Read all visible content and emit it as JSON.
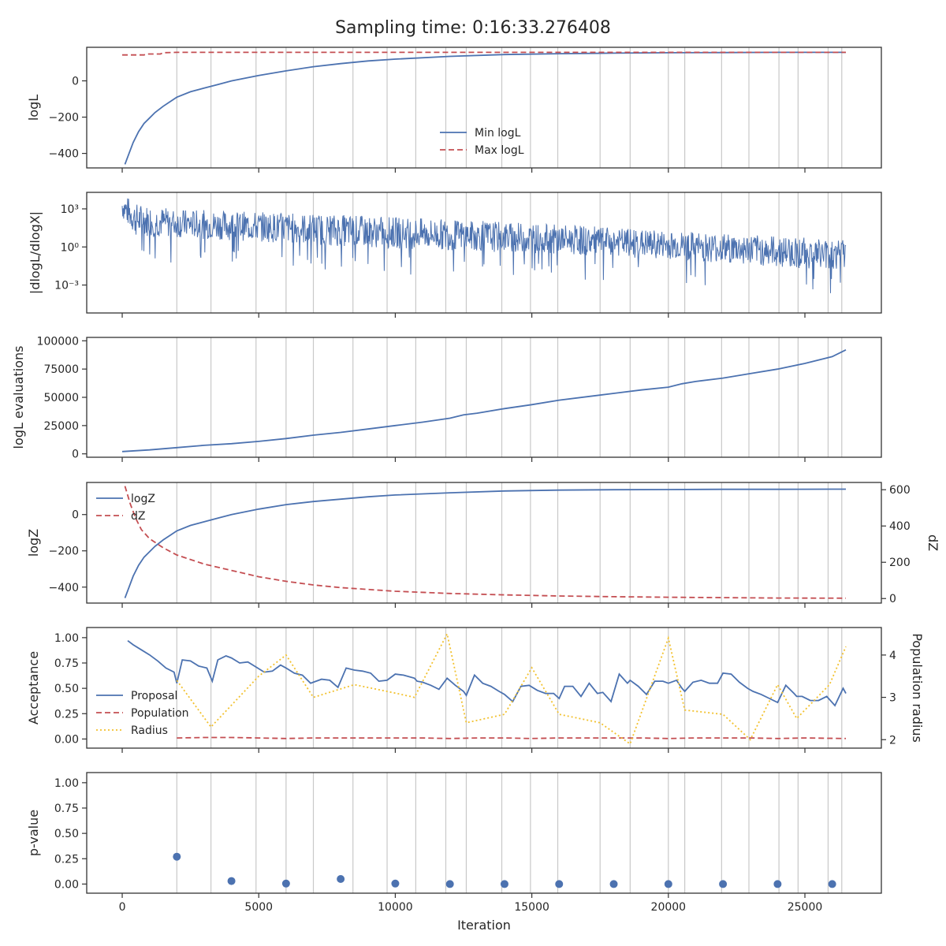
{
  "figure": {
    "title": "Sampling time: 0:16:33.276408",
    "xlabel": "Iteration"
  },
  "colors": {
    "blue": "#4c72b0",
    "red": "#c44e52",
    "red_dash": "#d62728",
    "gold": "#f2c12e",
    "grid": "#c8c8c8",
    "axis": "#333333"
  },
  "chart_data": [
    {
      "type": "line",
      "panel": "logL",
      "ylabel": "logL",
      "xlim": [
        -1300,
        27800
      ],
      "ylim": [
        -480,
        185
      ],
      "yticks": [
        0,
        -200,
        -400
      ],
      "ytick_labels": [
        "0",
        "−200",
        "−400"
      ],
      "legend": "lower-center",
      "series": [
        {
          "name": "Min logL",
          "style": "solid",
          "color": "#4c72b0",
          "x": [
            100,
            250,
            400,
            600,
            800,
            1000,
            1200,
            1500,
            1800,
            2000,
            2500,
            3000,
            3500,
            4000,
            5000,
            6000,
            7000,
            8000,
            9000,
            10000,
            12000,
            14000,
            16000,
            18000,
            20000,
            22000,
            24000,
            26000,
            26500
          ],
          "y": [
            -460,
            -400,
            -340,
            -280,
            -235,
            -205,
            -175,
            -140,
            -110,
            -90,
            -60,
            -40,
            -20,
            0,
            30,
            55,
            78,
            95,
            110,
            120,
            135,
            145,
            150,
            153,
            155,
            156,
            157,
            157,
            157
          ]
        },
        {
          "name": "Max logL",
          "style": "dashed",
          "color": "#c44e52",
          "x": [
            0,
            800,
            900,
            1400,
            1500,
            2000,
            26500
          ],
          "y": [
            143,
            143,
            148,
            148,
            155,
            157,
            157
          ]
        }
      ]
    },
    {
      "type": "line",
      "panel": "dlogL",
      "ylabel": "|dlogL/dlogX|",
      "yscale": "log",
      "xlim": [
        -1300,
        27800
      ],
      "ylim": [
        -5.2,
        4.3
      ],
      "yticks": [
        3,
        0,
        -3
      ],
      "ytick_labels": [
        "10³",
        "10⁰",
        "10⁻³"
      ],
      "series": [
        {
          "name": "",
          "style": "noisy-band",
          "color": "#4c72b0",
          "x": [
            0,
            500,
            2000,
            5000,
            8000,
            12000,
            16000,
            20000,
            24000,
            26500
          ],
          "upper_log10": [
            3.9,
            3.1,
            2.6,
            2.4,
            2.2,
            1.8,
            1.4,
            0.9,
            0.5,
            0.3
          ],
          "lower_log10": [
            1.6,
            0.2,
            0.1,
            -0.2,
            -0.6,
            -0.9,
            -1.2,
            -1.6,
            -2.2,
            -2.6
          ]
        }
      ]
    },
    {
      "type": "line",
      "panel": "evaluations",
      "ylabel": "logL evaluations",
      "xlim": [
        -1300,
        27800
      ],
      "ylim": [
        -3000,
        103000
      ],
      "yticks": [
        0,
        25000,
        50000,
        75000,
        100000
      ],
      "ytick_labels": [
        "0",
        "25000",
        "50000",
        "75000",
        "100000"
      ],
      "series": [
        {
          "name": "",
          "style": "solid",
          "color": "#4c72b0",
          "x": [
            0,
            1000,
            2000,
            3000,
            4000,
            5000,
            6000,
            7000,
            8000,
            9000,
            10000,
            11000,
            12000,
            12500,
            13000,
            14000,
            15000,
            16000,
            17000,
            18000,
            19000,
            20000,
            20500,
            21000,
            22000,
            23000,
            24000,
            25000,
            26000,
            26500
          ],
          "y": [
            2000,
            3500,
            5500,
            7500,
            9000,
            11000,
            13500,
            16500,
            19000,
            22000,
            25000,
            28000,
            31500,
            34500,
            36000,
            40000,
            43500,
            47500,
            50500,
            53500,
            56500,
            59000,
            62000,
            64000,
            67000,
            71000,
            75000,
            80000,
            86000,
            92000
          ]
        }
      ]
    },
    {
      "type": "line",
      "panel": "logZ",
      "ylabel": "logZ",
      "ylabel_right": "dZ",
      "xlim": [
        -1300,
        27800
      ],
      "ylim": [
        -488,
        177
      ],
      "ylim_right": [
        -25,
        640
      ],
      "yticks": [
        0,
        -200,
        -400
      ],
      "ytick_labels": [
        "0",
        "−200",
        "−400"
      ],
      "yticks_right": [
        0,
        200,
        400,
        600
      ],
      "ytick_labels_right": [
        "0",
        "200",
        "400",
        "600"
      ],
      "legend": "upper-left",
      "series": [
        {
          "name": "logZ",
          "style": "solid",
          "color": "#4c72b0",
          "axis": "left",
          "x": [
            100,
            250,
            400,
            600,
            800,
            1000,
            1200,
            1500,
            1800,
            2000,
            2500,
            3000,
            3500,
            4000,
            5000,
            6000,
            7000,
            8000,
            9000,
            10000,
            12000,
            14000,
            16000,
            18000,
            20000,
            22000,
            24000,
            26000,
            26500
          ],
          "y": [
            -460,
            -400,
            -340,
            -280,
            -235,
            -205,
            -175,
            -140,
            -110,
            -90,
            -60,
            -40,
            -20,
            0,
            30,
            55,
            72,
            85,
            98,
            108,
            120,
            130,
            135,
            137,
            138,
            139,
            139,
            140,
            140
          ]
        },
        {
          "name": "dZ",
          "style": "dashed",
          "color": "#c44e52",
          "axis": "right",
          "x": [
            100,
            300,
            500,
            700,
            1000,
            1500,
            2000,
            3000,
            4000,
            5000,
            6000,
            7000,
            8000,
            10000,
            12000,
            14000,
            16000,
            18000,
            20000,
            22000,
            24000,
            26500
          ],
          "y": [
            620,
            520,
            440,
            380,
            330,
            280,
            240,
            190,
            155,
            120,
            95,
            75,
            60,
            40,
            28,
            20,
            14,
            10,
            7,
            5,
            3,
            2
          ]
        }
      ]
    },
    {
      "type": "line",
      "panel": "acceptance",
      "ylabel": "Acceptance",
      "ylabel_right": "Population radius",
      "xlim": [
        -1300,
        27800
      ],
      "ylim": [
        -0.09,
        1.1
      ],
      "ylim_right": [
        1.8,
        4.65
      ],
      "yticks": [
        0,
        0.25,
        0.5,
        0.75,
        1.0
      ],
      "ytick_labels": [
        "0.00",
        "0.25",
        "0.50",
        "0.75",
        "1.00"
      ],
      "yticks_right": [
        2,
        3,
        4
      ],
      "ytick_labels_right": [
        "2",
        "3",
        "4"
      ],
      "legend": "lower-left",
      "series": [
        {
          "name": "Proposal",
          "style": "solid",
          "color": "#4c72b0",
          "axis": "left",
          "x": [
            200,
            400,
            700,
            1000,
            1300,
            1600,
            1900,
            2000,
            2200,
            2500,
            2800,
            3100,
            3300,
            3500,
            3800,
            4000,
            4300,
            4600,
            4900,
            5200,
            5500,
            5800,
            6000,
            6300,
            6600,
            6900,
            7000,
            7300,
            7600,
            7900,
            8200,
            8500,
            8800,
            9100,
            9400,
            9700,
            10000,
            10300,
            10700,
            10800,
            11000,
            11300,
            11600,
            11900,
            12200,
            12500,
            12600,
            12900,
            13200,
            13500,
            13800,
            14000,
            14300,
            14600,
            14900,
            15200,
            15500,
            15800,
            16000,
            16200,
            16500,
            16800,
            17100,
            17400,
            17600,
            17900,
            18200,
            18500,
            18600,
            18900,
            19200,
            19500,
            19800,
            20000,
            20300,
            20500,
            20600,
            20900,
            21200,
            21500,
            21800,
            22000,
            22300,
            22600,
            22900,
            23100,
            23400,
            23700,
            24000,
            24300,
            24600,
            24700,
            24900,
            25200,
            25500,
            25800,
            26100,
            26400,
            26500
          ],
          "y": [
            0.97,
            0.93,
            0.88,
            0.83,
            0.77,
            0.7,
            0.66,
            0.55,
            0.78,
            0.77,
            0.72,
            0.7,
            0.57,
            0.78,
            0.82,
            0.8,
            0.75,
            0.76,
            0.71,
            0.66,
            0.67,
            0.73,
            0.7,
            0.65,
            0.63,
            0.55,
            0.56,
            0.59,
            0.58,
            0.51,
            0.7,
            0.68,
            0.67,
            0.65,
            0.57,
            0.58,
            0.64,
            0.63,
            0.6,
            0.57,
            0.56,
            0.53,
            0.49,
            0.6,
            0.53,
            0.47,
            0.43,
            0.63,
            0.55,
            0.52,
            0.47,
            0.44,
            0.37,
            0.52,
            0.53,
            0.48,
            0.45,
            0.45,
            0.4,
            0.52,
            0.52,
            0.42,
            0.55,
            0.45,
            0.46,
            0.37,
            0.64,
            0.55,
            0.58,
            0.52,
            0.44,
            0.57,
            0.57,
            0.55,
            0.58,
            0.5,
            0.47,
            0.56,
            0.58,
            0.55,
            0.55,
            0.65,
            0.64,
            0.56,
            0.5,
            0.47,
            0.44,
            0.4,
            0.36,
            0.53,
            0.45,
            0.42,
            0.42,
            0.38,
            0.38,
            0.42,
            0.33,
            0.5,
            0.45
          ],
          "smooth": false
        },
        {
          "name": "Population",
          "style": "dashed",
          "color": "#c44e52",
          "axis": "left",
          "x": [
            2000,
            3000,
            4000,
            5000,
            6000,
            7000,
            8000,
            9000,
            10000,
            11000,
            12000,
            13000,
            14000,
            15000,
            16000,
            17000,
            18000,
            19000,
            20000,
            21000,
            22000,
            23000,
            24000,
            25000,
            26500
          ],
          "y": [
            0.01,
            0.015,
            0.015,
            0.01,
            0.005,
            0.01,
            0.01,
            0.01,
            0.01,
            0.01,
            0.005,
            0.01,
            0.01,
            0.005,
            0.01,
            0.01,
            0.01,
            0.01,
            0.005,
            0.01,
            0.01,
            0.01,
            0.005,
            0.01,
            0.005
          ]
        },
        {
          "name": "Radius",
          "style": "dotted",
          "color": "#f2c12e",
          "axis": "right",
          "x": [
            2000,
            3250,
            5000,
            6000,
            7000,
            8500,
            10000,
            10700,
            11900,
            12600,
            14000,
            15000,
            16000,
            17500,
            18600,
            20000,
            20600,
            22000,
            23000,
            24000,
            24700,
            25900,
            26500
          ],
          "y": [
            3.4,
            2.3,
            3.5,
            4.0,
            3.0,
            3.3,
            3.1,
            3.0,
            4.5,
            2.4,
            2.6,
            3.7,
            2.6,
            2.4,
            1.9,
            4.4,
            2.7,
            2.6,
            2.0,
            3.3,
            2.5,
            3.3,
            4.2
          ]
        }
      ]
    },
    {
      "type": "scatter",
      "panel": "pvalue",
      "ylabel": "p-value",
      "xlim": [
        -1300,
        27800
      ],
      "ylim": [
        -0.09,
        1.1
      ],
      "yticks": [
        0,
        0.25,
        0.5,
        0.75,
        1.0
      ],
      "ytick_labels": [
        "0.00",
        "0.25",
        "0.50",
        "0.75",
        "1.00"
      ],
      "xticks": [
        0,
        5000,
        10000,
        15000,
        20000,
        25000
      ],
      "xtick_labels": [
        "0",
        "5000",
        "10000",
        "15000",
        "20000",
        "25000"
      ],
      "series": [
        {
          "name": "",
          "color": "#4c72b0",
          "x": [
            2000,
            4000,
            6000,
            8000,
            10000,
            12000,
            14000,
            16000,
            18000,
            20000,
            22000,
            24000,
            26000
          ],
          "y": [
            0.27,
            0.03,
            0.005,
            0.05,
            0.005,
            0.0,
            0.0,
            0.0,
            0.0,
            0.0,
            0.0,
            0.0,
            0.0
          ]
        }
      ]
    }
  ],
  "vlines": [
    2000,
    3250,
    4900,
    6000,
    7000,
    8450,
    9700,
    10750,
    11850,
    12600,
    13900,
    14950,
    15950,
    17500,
    18600,
    20000,
    20600,
    21950,
    22950,
    24050,
    24750,
    25850,
    26350
  ]
}
